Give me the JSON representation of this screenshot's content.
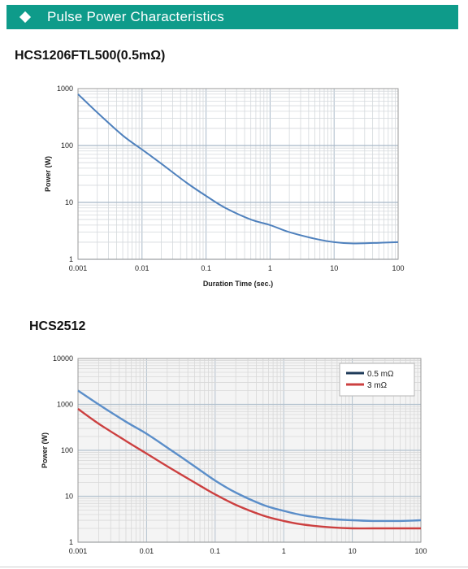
{
  "header": {
    "title": "Pulse Power Characteristics",
    "icon": "diamond-icon"
  },
  "chart1_heading": "HCS1206FTL500(0.5mΩ)",
  "chart2_heading": "HCS2512",
  "chart_data": [
    {
      "type": "line",
      "xscale": "log",
      "yscale": "log",
      "xlim": [
        0.001,
        100
      ],
      "ylim": [
        1,
        1000
      ],
      "xticks": [
        "0.001",
        "0.01",
        "0.1",
        "1",
        "10",
        "100"
      ],
      "yticks": [
        "1",
        "10",
        "100",
        "1000"
      ],
      "xlabel": "Duration Time (sec.)",
      "ylabel": "Power (W)",
      "grid": true,
      "series": [
        {
          "color": "#4f81bd",
          "points": [
            [
              0.001,
              800
            ],
            [
              0.002,
              380
            ],
            [
              0.005,
              150
            ],
            [
              0.01,
              85
            ],
            [
              0.02,
              48
            ],
            [
              0.05,
              22
            ],
            [
              0.1,
              13
            ],
            [
              0.2,
              8
            ],
            [
              0.5,
              5
            ],
            [
              1,
              4
            ],
            [
              2,
              3
            ],
            [
              5,
              2.3
            ],
            [
              10,
              2
            ],
            [
              20,
              1.9
            ],
            [
              50,
              1.95
            ],
            [
              100,
              2
            ]
          ]
        }
      ]
    },
    {
      "type": "line",
      "xscale": "log",
      "yscale": "log",
      "xlim": [
        0.001,
        100
      ],
      "ylim": [
        1,
        10000
      ],
      "xticks": [
        "0.001",
        "0.01",
        "0.1",
        "1",
        "10",
        "100"
      ],
      "yticks": [
        "1",
        "10",
        "100",
        "1000",
        "10000"
      ],
      "xlabel": "",
      "ylabel": "Power (W)",
      "grid": true,
      "legend": "top-right",
      "series": [
        {
          "name": "0.5 mΩ",
          "color": "#5b8ec9",
          "points": [
            [
              0.001,
              2000
            ],
            [
              0.002,
              1000
            ],
            [
              0.005,
              420
            ],
            [
              0.01,
              230
            ],
            [
              0.02,
              115
            ],
            [
              0.05,
              45
            ],
            [
              0.1,
              22
            ],
            [
              0.2,
              12
            ],
            [
              0.5,
              6.5
            ],
            [
              1,
              4.8
            ],
            [
              2,
              3.8
            ],
            [
              5,
              3.2
            ],
            [
              10,
              3
            ],
            [
              20,
              2.9
            ],
            [
              50,
              2.9
            ],
            [
              100,
              3
            ]
          ]
        },
        {
          "name": "3 mΩ",
          "color": "#cc4040",
          "points": [
            [
              0.001,
              800
            ],
            [
              0.002,
              380
            ],
            [
              0.005,
              160
            ],
            [
              0.01,
              85
            ],
            [
              0.02,
              45
            ],
            [
              0.05,
              20
            ],
            [
              0.1,
              11
            ],
            [
              0.2,
              6.5
            ],
            [
              0.5,
              3.8
            ],
            [
              1,
              2.9
            ],
            [
              2,
              2.4
            ],
            [
              5,
              2.1
            ],
            [
              10,
              2
            ],
            [
              20,
              2
            ],
            [
              50,
              2
            ],
            [
              100,
              2
            ]
          ]
        }
      ]
    }
  ]
}
